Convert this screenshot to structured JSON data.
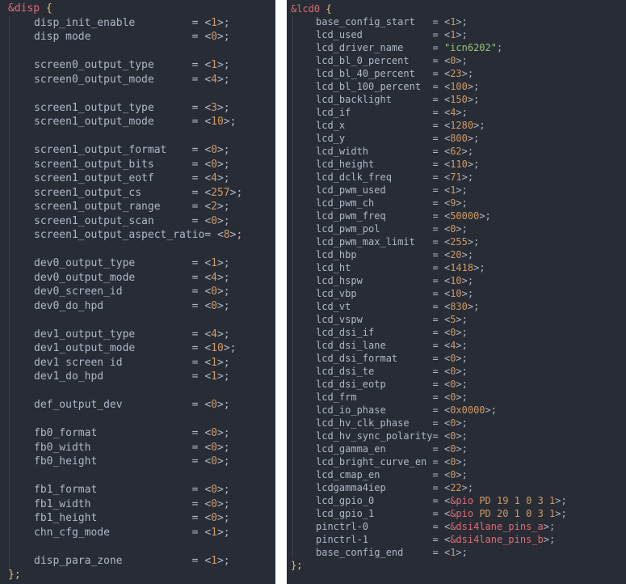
{
  "colors": {
    "background": "#282c35",
    "key": "#aeb9c8",
    "node": "#e06c75",
    "brace": "#e5c07b",
    "number": "#d19a66",
    "string": "#98c379",
    "reference": "#e06c75"
  },
  "left": {
    "node": "&disp",
    "open": "{",
    "close": "};",
    "lines": [
      {
        "key": "disp_init_enable",
        "op": "=",
        "val": "1"
      },
      {
        "key": "disp mode",
        "op": "=",
        "val": "0"
      },
      null,
      {
        "key": "screen0_output_type",
        "op": "=",
        "val": "1"
      },
      {
        "key": "screen0_output_mode",
        "op": "=",
        "val": "4"
      },
      null,
      {
        "key": "screen1_output_type",
        "op": "=",
        "val": "3"
      },
      {
        "key": "screen1_output_mode",
        "op": "=",
        "val": "10"
      },
      null,
      {
        "key": "screen1_output_format",
        "op": "=",
        "val": "0"
      },
      {
        "key": "screen1_output_bits",
        "op": "=",
        "val": "0"
      },
      {
        "key": "screen1_output_eotf",
        "op": "=",
        "val": "4"
      },
      {
        "key": "screen1_output_cs",
        "op": "=",
        "val": "257"
      },
      {
        "key": "screen1_output_range",
        "op": "=",
        "val": "2"
      },
      {
        "key": "screen1_output_scan",
        "op": "=",
        "val": "0"
      },
      {
        "key": "screen1_output_aspect_ratio",
        "op": "=",
        "val": "8"
      },
      null,
      {
        "key": "dev0_output_type",
        "op": "=",
        "val": "1"
      },
      {
        "key": "dev0_output_mode",
        "op": "=",
        "val": "4"
      },
      {
        "key": "dev0_screen_id",
        "op": "=",
        "val": "0"
      },
      {
        "key": "dev0_do_hpd",
        "op": "=",
        "val": "0"
      },
      null,
      {
        "key": "dev1_output_type",
        "op": "=",
        "val": "4"
      },
      {
        "key": "dev1_output_mode",
        "op": "=",
        "val": "10"
      },
      {
        "key": "dev1 screen id",
        "op": "=",
        "val": "1"
      },
      {
        "key": "dev1_do_hpd",
        "op": "=",
        "val": "1"
      },
      null,
      {
        "key": "def_output_dev",
        "op": "=",
        "val": "0"
      },
      null,
      {
        "key": "fb0_format",
        "op": "=",
        "val": "0"
      },
      {
        "key": "fb0_width",
        "op": "=",
        "val": "0"
      },
      {
        "key": "fb0_height",
        "op": "=",
        "val": "0"
      },
      null,
      {
        "key": "fb1_format",
        "op": "=",
        "val": "0"
      },
      {
        "key": "fb1_width",
        "op": "=",
        "val": "0"
      },
      {
        "key": "fb1_height",
        "op": "=",
        "val": "0"
      },
      {
        "key": "chn_cfg_mode",
        "op": "=",
        "val": "1"
      },
      null,
      {
        "key": "disp_para_zone",
        "op": "=",
        "val": "1"
      }
    ]
  },
  "right": {
    "node": "&lcd0",
    "open": "{",
    "close": "};",
    "lines": [
      {
        "key": "base_config_start",
        "op": "=",
        "val": "1"
      },
      {
        "key": "lcd_used",
        "op": "=",
        "val": "1"
      },
      {
        "key": "lcd_driver_name",
        "op": "=",
        "str": "\"icn6202\""
      },
      {
        "key": "lcd_bl_0_percent",
        "op": "=",
        "val": "0"
      },
      {
        "key": "lcd_bl_40_percent",
        "op": "=",
        "val": "23"
      },
      {
        "key": "lcd_bl_100_percent",
        "op": "=",
        "val": "100"
      },
      {
        "key": "lcd_backlight",
        "op": "=",
        "val": "150"
      },
      {
        "key": "lcd_if",
        "op": "=",
        "val": "4"
      },
      {
        "key": "lcd_x",
        "op": "=",
        "val": "1280"
      },
      {
        "key": "lcd_y",
        "op": "=",
        "val": "800"
      },
      {
        "key": "lcd_width",
        "op": "=",
        "val": "62"
      },
      {
        "key": "lcd_height",
        "op": "=",
        "val": "110"
      },
      {
        "key": "lcd_dclk_freq",
        "op": "=",
        "val": "71"
      },
      {
        "key": "lcd_pwm_used",
        "op": "=",
        "val": "1"
      },
      {
        "key": "lcd_pwm_ch",
        "op": "=",
        "val": "9"
      },
      {
        "key": "lcd_pwm_freq",
        "op": "=",
        "val": "50000"
      },
      {
        "key": "lcd_pwm_pol",
        "op": "=",
        "val": "0"
      },
      {
        "key": "lcd_pwm_max_limit",
        "op": "=",
        "val": "255"
      },
      {
        "key": "lcd_hbp",
        "op": "=",
        "val": "20"
      },
      {
        "key": "lcd_ht",
        "op": "=",
        "val": "1418"
      },
      {
        "key": "lcd_hspw",
        "op": "=",
        "val": "10"
      },
      {
        "key": "lcd_vbp",
        "op": "=",
        "val": "10"
      },
      {
        "key": "lcd_vt",
        "op": "=",
        "val": "830"
      },
      {
        "key": "lcd_vspw",
        "op": "=",
        "val": "5"
      },
      {
        "key": "lcd_dsi_if",
        "op": "=",
        "val": "0"
      },
      {
        "key": "lcd_dsi_lane",
        "op": "=",
        "val": "4"
      },
      {
        "key": "lcd_dsi_format",
        "op": "=",
        "val": "0"
      },
      {
        "key": "lcd_dsi_te",
        "op": "=",
        "val": "0"
      },
      {
        "key": "lcd_dsi_eotp",
        "op": "=",
        "val": "0"
      },
      {
        "key": "lcd_frm",
        "op": "=",
        "val": "0"
      },
      {
        "key": "lcd_io_phase",
        "op": "=",
        "val": "0x0000"
      },
      {
        "key": "lcd_hv_clk_phase",
        "op": "=",
        "val": "0"
      },
      {
        "key": "lcd_hv_sync_polarity",
        "op": "=",
        "val": "0"
      },
      {
        "key": "lcd_gamma_en",
        "op": "=",
        "val": "0"
      },
      {
        "key": "lcd_bright_curve_en",
        "op": "=",
        "val": "0"
      },
      {
        "key": "lcd_cmap_en",
        "op": "=",
        "val": "0"
      },
      {
        "key": "lcdgamma4iep",
        "op": "=",
        "val": "22"
      },
      {
        "key": "lcd_gpio_0",
        "op": "=",
        "ref": "&pio",
        "val": " PD 19 1 0 3 1"
      },
      {
        "key": "lcd_gpio_1",
        "op": "=",
        "ref": "&pio",
        "val": " PD 20 1 0 3 1"
      },
      {
        "key": "pinctrl-0",
        "op": "=",
        "ref": "&dsi4lane_pins_a"
      },
      {
        "key": "pinctrl-1",
        "op": "=",
        "ref": "&dsi4lane_pins_b"
      },
      {
        "key": "base_config_end",
        "op": "=",
        "val": "1"
      }
    ]
  }
}
